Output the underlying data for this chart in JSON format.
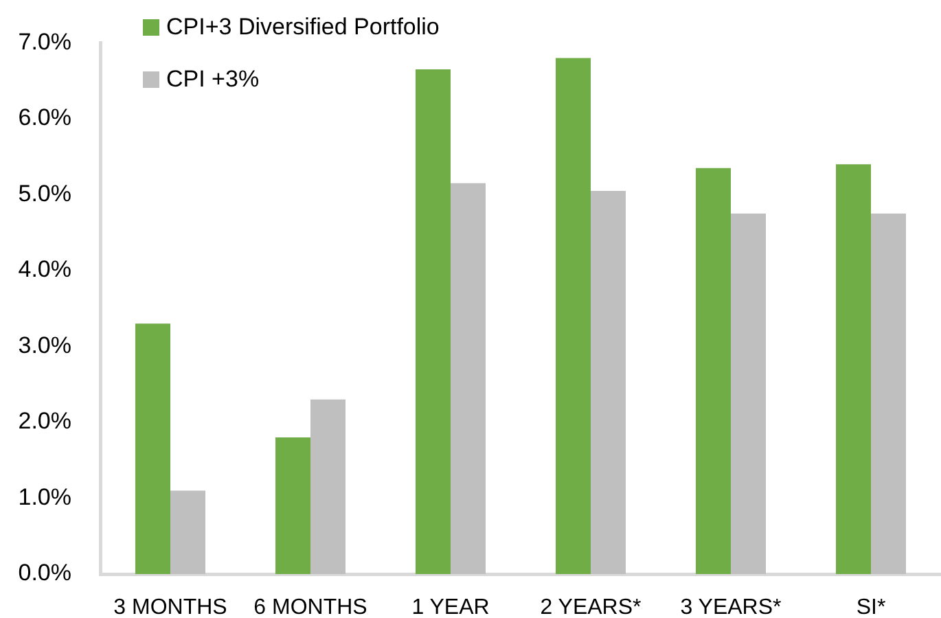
{
  "chart_data": {
    "type": "bar",
    "categories": [
      "3 MONTHS",
      "6 MONTHS",
      "1 YEAR",
      "2 YEARS*",
      "3 YEARS*",
      "SI*"
    ],
    "series": [
      {
        "name": "CPI+3 Diversified Portfolio",
        "color": "#70ad47",
        "values": [
          3.3,
          1.8,
          6.65,
          6.8,
          5.35,
          5.4
        ]
      },
      {
        "name": "CPI +3%",
        "color": "#bfbfbf",
        "values": [
          1.1,
          2.3,
          5.15,
          5.05,
          4.75,
          4.75
        ]
      }
    ],
    "ylim": [
      0,
      7
    ],
    "yticks": [
      {
        "value": 0,
        "label": "0.0%"
      },
      {
        "value": 1,
        "label": "1.0%"
      },
      {
        "value": 2,
        "label": "2.0%"
      },
      {
        "value": 3,
        "label": "3.0%"
      },
      {
        "value": 4,
        "label": "4.0%"
      },
      {
        "value": 5,
        "label": "5.0%"
      },
      {
        "value": 6,
        "label": "6.0%"
      },
      {
        "value": 7,
        "label": "7.0%"
      }
    ],
    "grid": false,
    "legend": "top left"
  }
}
